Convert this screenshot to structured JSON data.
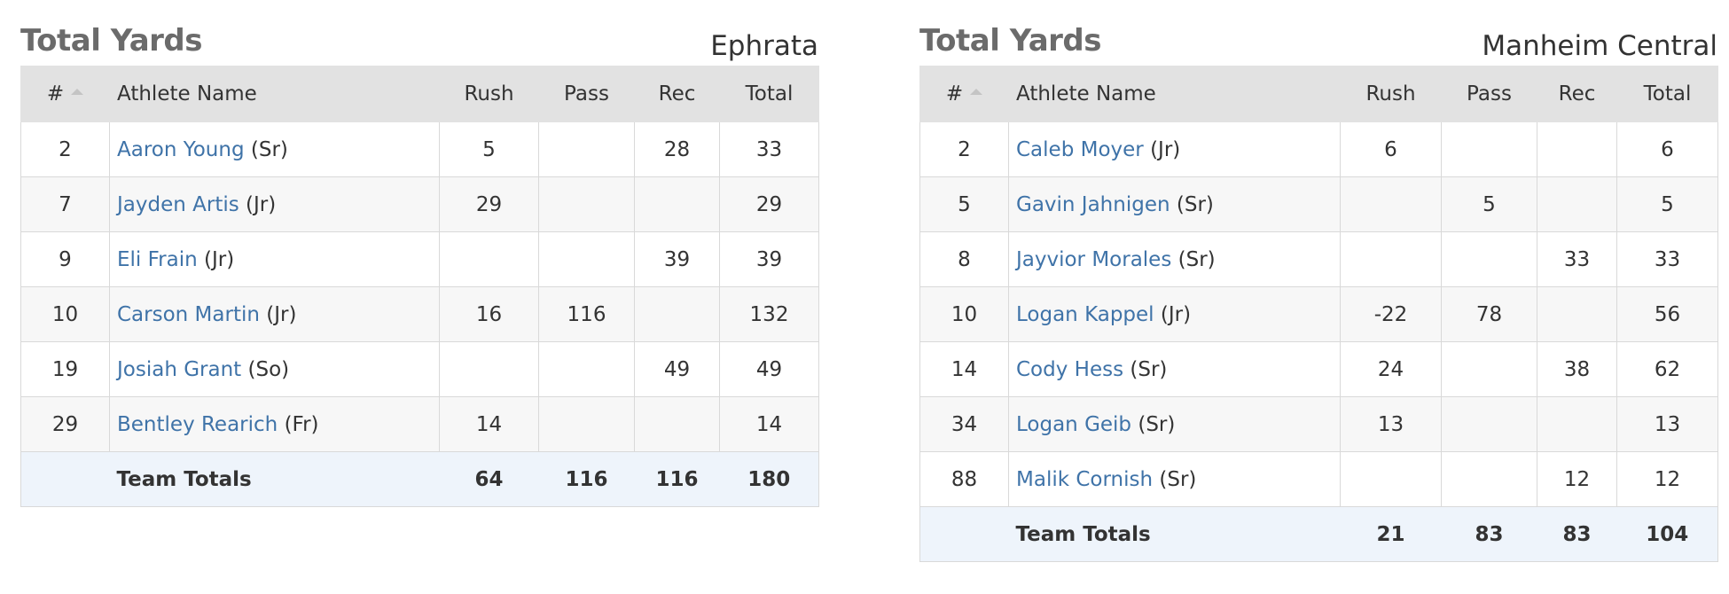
{
  "tables": [
    {
      "title": "Total Yards",
      "team": "Ephrata",
      "headers": {
        "num": "#",
        "name": "Athlete Name",
        "rush": "Rush",
        "pass": "Pass",
        "rec": "Rec",
        "total": "Total"
      },
      "rows": [
        {
          "num": "2",
          "name": "Aaron Young",
          "year": "(Sr)",
          "rush": "5",
          "pass": "",
          "rec": "28",
          "total": "33"
        },
        {
          "num": "7",
          "name": "Jayden Artis",
          "year": "(Jr)",
          "rush": "29",
          "pass": "",
          "rec": "",
          "total": "29"
        },
        {
          "num": "9",
          "name": "Eli Frain",
          "year": "(Jr)",
          "rush": "",
          "pass": "",
          "rec": "39",
          "total": "39"
        },
        {
          "num": "10",
          "name": "Carson Martin",
          "year": "(Jr)",
          "rush": "16",
          "pass": "116",
          "rec": "",
          "total": "132"
        },
        {
          "num": "19",
          "name": "Josiah Grant",
          "year": "(So)",
          "rush": "",
          "pass": "",
          "rec": "49",
          "total": "49"
        },
        {
          "num": "29",
          "name": "Bentley Rearich",
          "year": "(Fr)",
          "rush": "14",
          "pass": "",
          "rec": "",
          "total": "14"
        }
      ],
      "totals": {
        "label": "Team Totals",
        "rush": "64",
        "pass": "116",
        "rec": "116",
        "total": "180"
      }
    },
    {
      "title": "Total Yards",
      "team": "Manheim Central",
      "headers": {
        "num": "#",
        "name": "Athlete Name",
        "rush": "Rush",
        "pass": "Pass",
        "rec": "Rec",
        "total": "Total"
      },
      "rows": [
        {
          "num": "2",
          "name": "Caleb Moyer",
          "year": "(Jr)",
          "rush": "6",
          "pass": "",
          "rec": "",
          "total": "6"
        },
        {
          "num": "5",
          "name": "Gavin Jahnigen",
          "year": "(Sr)",
          "rush": "",
          "pass": "5",
          "rec": "",
          "total": "5"
        },
        {
          "num": "8",
          "name": "Jayvior Morales",
          "year": "(Sr)",
          "rush": "",
          "pass": "",
          "rec": "33",
          "total": "33"
        },
        {
          "num": "10",
          "name": "Logan Kappel",
          "year": "(Jr)",
          "rush": "-22",
          "pass": "78",
          "rec": "",
          "total": "56"
        },
        {
          "num": "14",
          "name": "Cody Hess",
          "year": "(Sr)",
          "rush": "24",
          "pass": "",
          "rec": "38",
          "total": "62"
        },
        {
          "num": "34",
          "name": "Logan Geib",
          "year": "(Sr)",
          "rush": "13",
          "pass": "",
          "rec": "",
          "total": "13"
        },
        {
          "num": "88",
          "name": "Malik Cornish",
          "year": "(Sr)",
          "rush": "",
          "pass": "",
          "rec": "12",
          "total": "12"
        }
      ],
      "totals": {
        "label": "Team Totals",
        "rush": "21",
        "pass": "83",
        "rec": "83",
        "total": "104"
      }
    }
  ]
}
